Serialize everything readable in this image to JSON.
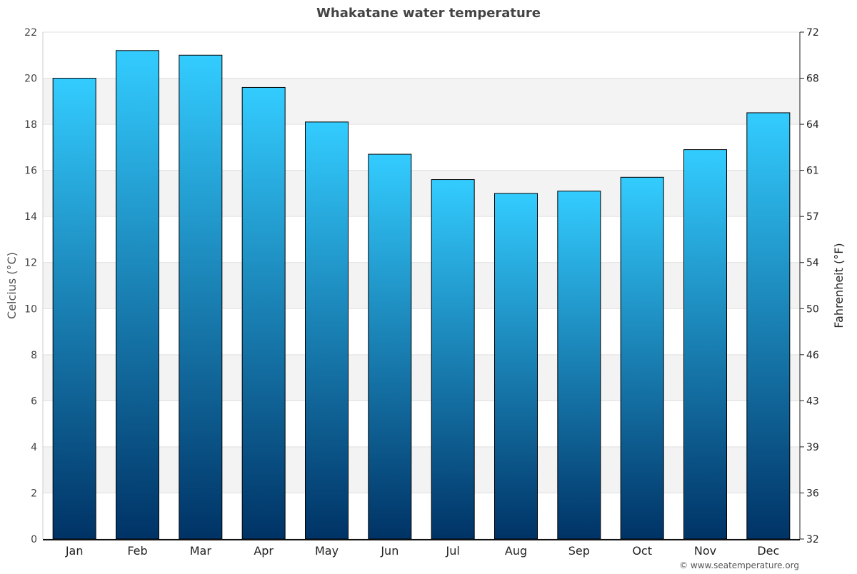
{
  "chart_data": {
    "type": "bar",
    "title": "Whakatane water temperature",
    "categories": [
      "Jan",
      "Feb",
      "Mar",
      "Apr",
      "May",
      "Jun",
      "Jul",
      "Aug",
      "Sep",
      "Oct",
      "Nov",
      "Dec"
    ],
    "values": [
      20.0,
      21.2,
      21.0,
      19.6,
      18.1,
      16.7,
      15.6,
      15.0,
      15.1,
      15.7,
      16.9,
      18.5
    ],
    "ylabel": "Celcius (°C)",
    "ylabel_right": "Fahrenheit (°F)",
    "ylim": [
      0,
      22
    ],
    "yticks": [
      0,
      2,
      4,
      6,
      8,
      10,
      12,
      14,
      16,
      18,
      20,
      22
    ],
    "yticks_right": [
      "32",
      "36",
      "39",
      "43",
      "46",
      "50",
      "54",
      "57",
      "61",
      "64",
      "68",
      "72"
    ],
    "grid": true,
    "colors": {
      "bar_top": "#33ccff",
      "bar_bottom": "#003366",
      "band": "#f3f3f3"
    }
  },
  "footer": "© www.seatemperature.org"
}
